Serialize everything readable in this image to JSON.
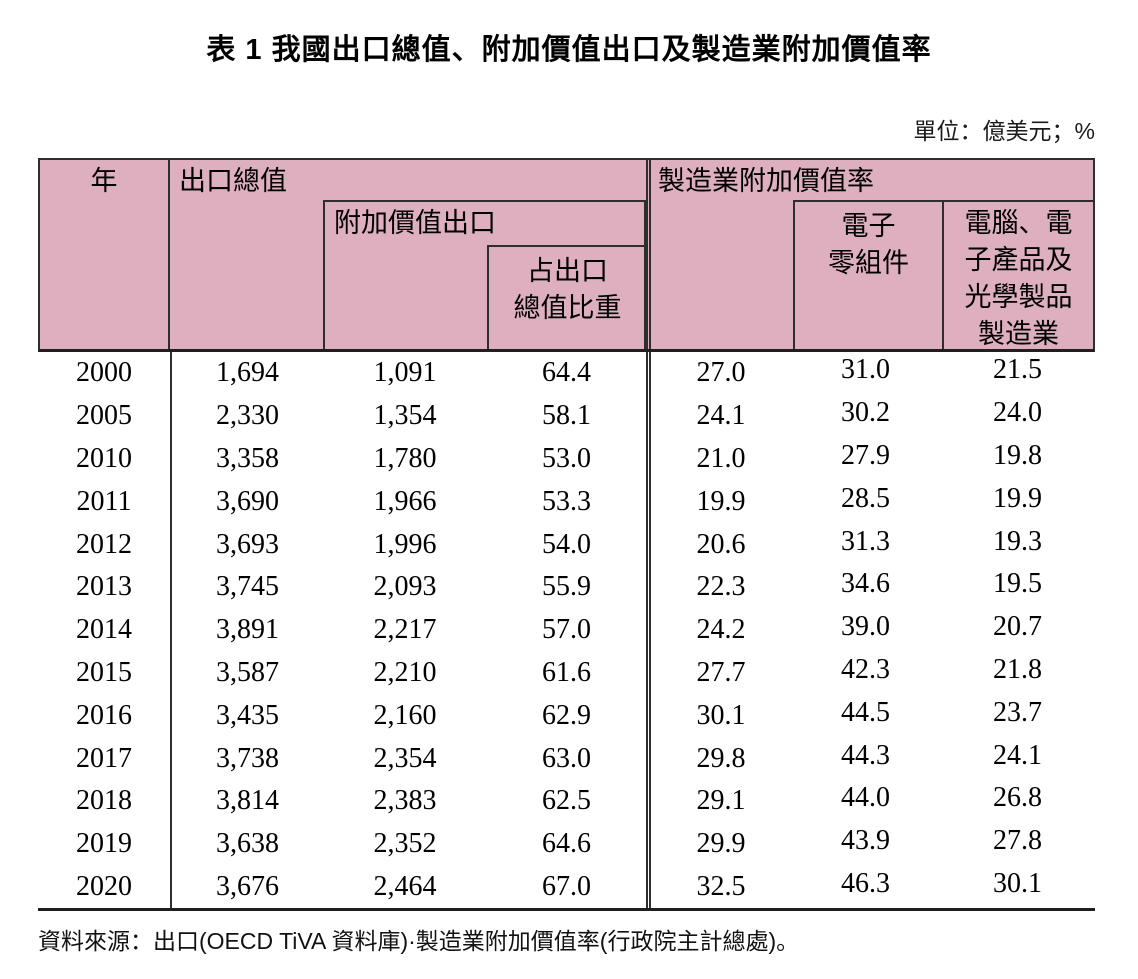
{
  "title": "表 1 我國出口總值、附加價值出口及製造業附加價值率",
  "unit_note": "單位：億美元；%",
  "source_note": "資料來源：出口(OECD TiVA 資料庫)·製造業附加價值率(行政院主計總處)。",
  "colors": {
    "header_bg": "#deafbe",
    "border": "#2e2e2e"
  },
  "table": {
    "header": {
      "year": "年",
      "total_exports": "出口總值",
      "value_added_exports": "附加價值出口",
      "share_line1": "占出口",
      "share_line2": "總值比重",
      "mfg_va_rate": "製造業附加價值率",
      "electronic_line1": "電子",
      "electronic_line2": "零組件",
      "computer_line1": "電腦、電",
      "computer_line2": "子產品及",
      "computer_line3": "光學製品",
      "computer_line4": "製造業"
    },
    "columns": [
      "年",
      "出口總值",
      "附加價值出口",
      "占出口總值比重",
      "製造業附加價值率",
      "電子零組件",
      "電腦、電子產品及光學製品製造業"
    ],
    "rows": [
      [
        "2000",
        "1,694",
        "1,091",
        "64.4",
        "27.0",
        "31.0",
        "21.5"
      ],
      [
        "2005",
        "2,330",
        "1,354",
        "58.1",
        "24.1",
        "30.2",
        "24.0"
      ],
      [
        "2010",
        "3,358",
        "1,780",
        "53.0",
        "21.0",
        "27.9",
        "19.8"
      ],
      [
        "2011",
        "3,690",
        "1,966",
        "53.3",
        "19.9",
        "28.5",
        "19.9"
      ],
      [
        "2012",
        "3,693",
        "1,996",
        "54.0",
        "20.6",
        "31.3",
        "19.3"
      ],
      [
        "2013",
        "3,745",
        "2,093",
        "55.9",
        "22.3",
        "34.6",
        "19.5"
      ],
      [
        "2014",
        "3,891",
        "2,217",
        "57.0",
        "24.2",
        "39.0",
        "20.7"
      ],
      [
        "2015",
        "3,587",
        "2,210",
        "61.6",
        "27.7",
        "42.3",
        "21.8"
      ],
      [
        "2016",
        "3,435",
        "2,160",
        "62.9",
        "30.1",
        "44.5",
        "23.7"
      ],
      [
        "2017",
        "3,738",
        "2,354",
        "63.0",
        "29.8",
        "44.3",
        "24.1"
      ],
      [
        "2018",
        "3,814",
        "2,383",
        "62.5",
        "29.1",
        "44.0",
        "26.8"
      ],
      [
        "2019",
        "3,638",
        "2,352",
        "64.6",
        "29.9",
        "43.9",
        "27.8"
      ],
      [
        "2020",
        "3,676",
        "2,464",
        "67.0",
        "32.5",
        "46.3",
        "30.1"
      ]
    ]
  }
}
